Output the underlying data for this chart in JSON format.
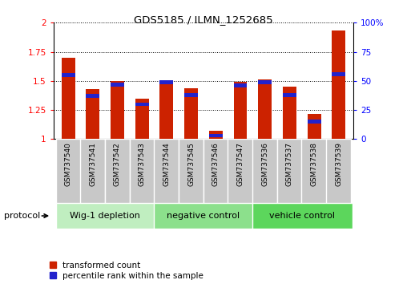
{
  "title": "GDS5185 / ILMN_1252685",
  "samples": [
    "GSM737540",
    "GSM737541",
    "GSM737542",
    "GSM737543",
    "GSM737544",
    "GSM737545",
    "GSM737546",
    "GSM737547",
    "GSM737536",
    "GSM737537",
    "GSM737538",
    "GSM737539"
  ],
  "red_values": [
    1.7,
    1.43,
    1.5,
    1.35,
    1.49,
    1.44,
    1.07,
    1.49,
    1.51,
    1.45,
    1.22,
    1.93
  ],
  "blue_pct": [
    55,
    37,
    47,
    30,
    49,
    38,
    3,
    46,
    49,
    38,
    15,
    56
  ],
  "ylim_left": [
    1.0,
    2.0
  ],
  "ylim_right": [
    0,
    100
  ],
  "yticks_left": [
    1.0,
    1.25,
    1.5,
    1.75,
    2.0
  ],
  "ytick_labels_left": [
    "1",
    "1.25",
    "1.5",
    "1.75",
    "2"
  ],
  "yticks_right": [
    0,
    25,
    50,
    75,
    100
  ],
  "ytick_labels_right": [
    "0",
    "25",
    "50",
    "75",
    "100%"
  ],
  "groups": [
    {
      "label": "Wig-1 depletion",
      "start": 0,
      "end": 3
    },
    {
      "label": "negative control",
      "start": 4,
      "end": 7
    },
    {
      "label": "vehicle control",
      "start": 8,
      "end": 11
    }
  ],
  "group_colors": [
    "#c0eec0",
    "#8ce08c",
    "#5cd65c"
  ],
  "bar_width": 0.55,
  "red_color": "#cc2200",
  "blue_color": "#2222cc",
  "gray_color": "#c8c8c8",
  "protocol_label": "protocol",
  "legend_red": "transformed count",
  "legend_blue": "percentile rank within the sample"
}
